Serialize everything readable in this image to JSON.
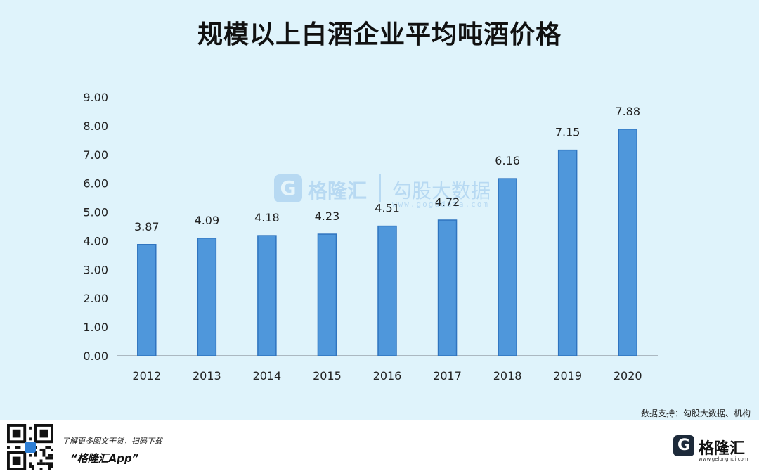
{
  "title": "规模以上白酒企业平均吨酒价格",
  "chart_data": {
    "type": "bar",
    "categories": [
      "2012",
      "2013",
      "2014",
      "2015",
      "2016",
      "2017",
      "2018",
      "2019",
      "2020"
    ],
    "values": [
      3.87,
      4.09,
      4.18,
      4.23,
      4.51,
      4.72,
      6.16,
      7.15,
      7.88
    ],
    "data_labels": [
      "3.87",
      "4.09",
      "4.18",
      "4.23",
      "4.51",
      "4.72",
      "6.16",
      "7.15",
      "7.88"
    ],
    "y_ticks": [
      "0.00",
      "1.00",
      "2.00",
      "3.00",
      "4.00",
      "5.00",
      "6.00",
      "7.00",
      "8.00",
      "9.00"
    ],
    "ylim": [
      0,
      9
    ],
    "grid": false,
    "bar_color": "#4f97db",
    "bar_edge_color": "#2f74bf"
  },
  "watermark": {
    "brand": "格隆汇",
    "sub": "勾股大数据",
    "url": "www.gogudata.com"
  },
  "source": "数据支持：勾股大数据、机构",
  "footer": {
    "promo": "了解更多图文干货，扫码下载",
    "app_name": "“格隆汇App”",
    "logo_name": "格隆汇",
    "logo_url": "www.gelonghui.com"
  },
  "colors": {
    "background": "#dff3fb",
    "footer_background": "#ffffff",
    "accent": "#2d7fd6"
  }
}
